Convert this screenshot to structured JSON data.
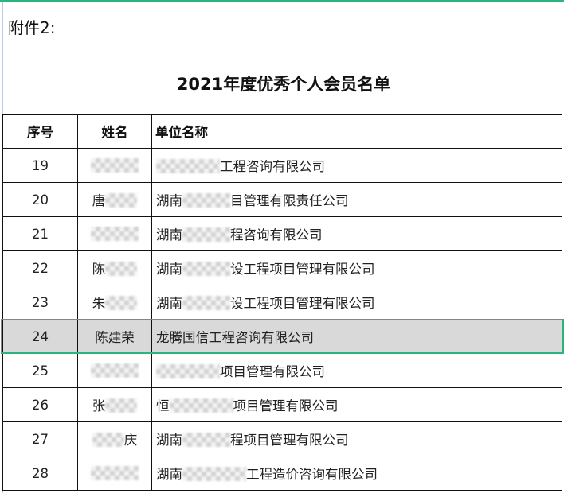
{
  "attachment_label": "附件2:",
  "title": "2021年度优秀个人会员名单",
  "headers": {
    "index": "序号",
    "name": "姓名",
    "company": "单位名称"
  },
  "rows": [
    {
      "index": "19",
      "name_pre": "",
      "name_post": "",
      "co_pre": "",
      "co_post": "工程咨询有限公司"
    },
    {
      "index": "20",
      "name_pre": "唐",
      "name_post": "",
      "co_pre": "湖南",
      "co_post": "目管理有限责任公司"
    },
    {
      "index": "21",
      "name_pre": "",
      "name_post": "",
      "co_pre": "湖南",
      "co_post": "程咨询有限公司"
    },
    {
      "index": "22",
      "name_pre": "陈",
      "name_post": "",
      "co_pre": "湖南",
      "co_post": "设工程项目管理有限公司"
    },
    {
      "index": "23",
      "name_pre": "朱",
      "name_post": "",
      "co_pre": "湖南",
      "co_post": "设工程项目管理有限公司"
    },
    {
      "index": "24",
      "name": "陈建荣",
      "company": "龙腾国信工程咨询有限公司",
      "selected": true
    },
    {
      "index": "25",
      "name_pre": "",
      "name_post": "",
      "co_pre": "",
      "co_post": "项目管理有限公司"
    },
    {
      "index": "26",
      "name_pre": "张",
      "name_post": "",
      "co_pre": "恒",
      "co_post": "项目管理有限公司"
    },
    {
      "index": "27",
      "name_pre": "",
      "name_post": "庆",
      "co_pre": "湖南",
      "co_post": "程项目管理有限公司"
    },
    {
      "index": "28",
      "name_pre": "",
      "name_post": "",
      "co_pre": "湖南",
      "co_post": "工程造价咨询有限公司"
    }
  ],
  "colors": {
    "selection": "#2bb57e",
    "selected_fill": "#d9d9d9",
    "grid": "#c3cade"
  }
}
